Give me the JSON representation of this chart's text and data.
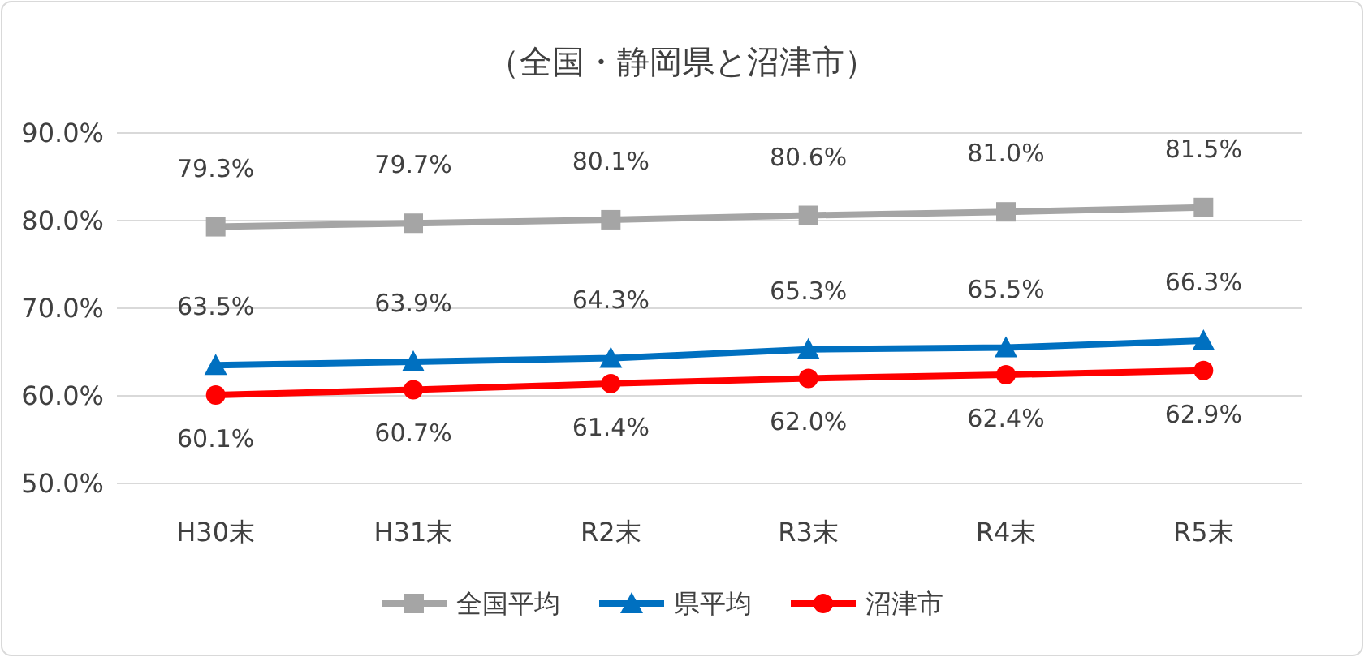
{
  "chart_data": {
    "type": "line",
    "title": "（全国・静岡県と沼津市）",
    "categories": [
      "H30末",
      "H31末",
      "R2末",
      "R3末",
      "R4末",
      "R5末"
    ],
    "series": [
      {
        "name": "全国平均",
        "color": "#a5a5a5",
        "marker": "square",
        "values": [
          79.3,
          79.7,
          80.1,
          80.6,
          81.0,
          81.5
        ],
        "value_labels": [
          "79.3%",
          "79.7%",
          "80.1%",
          "80.6%",
          "81.0%",
          "81.5%"
        ]
      },
      {
        "name": "県平均",
        "color": "#0070c0",
        "marker": "triangle",
        "values": [
          63.5,
          63.9,
          64.3,
          65.3,
          65.5,
          66.3
        ],
        "value_labels": [
          "63.5%",
          "63.9%",
          "64.3%",
          "65.3%",
          "65.5%",
          "66.3%"
        ]
      },
      {
        "name": "沼津市",
        "color": "#ff0000",
        "marker": "circle",
        "values": [
          60.1,
          60.7,
          61.4,
          62.0,
          62.4,
          62.9
        ],
        "value_labels": [
          "60.1%",
          "60.7%",
          "61.4%",
          "62.0%",
          "62.4%",
          "62.9%"
        ]
      }
    ],
    "ylim": [
      50,
      90
    ],
    "yticks": [
      {
        "value": 50,
        "label": "50.0%"
      },
      {
        "value": 60,
        "label": "60.0%"
      },
      {
        "value": 70,
        "label": "70.0%"
      },
      {
        "value": 80,
        "label": "80.0%"
      },
      {
        "value": 90,
        "label": "90.0%"
      }
    ],
    "grid": "y",
    "legend": "bottom"
  }
}
